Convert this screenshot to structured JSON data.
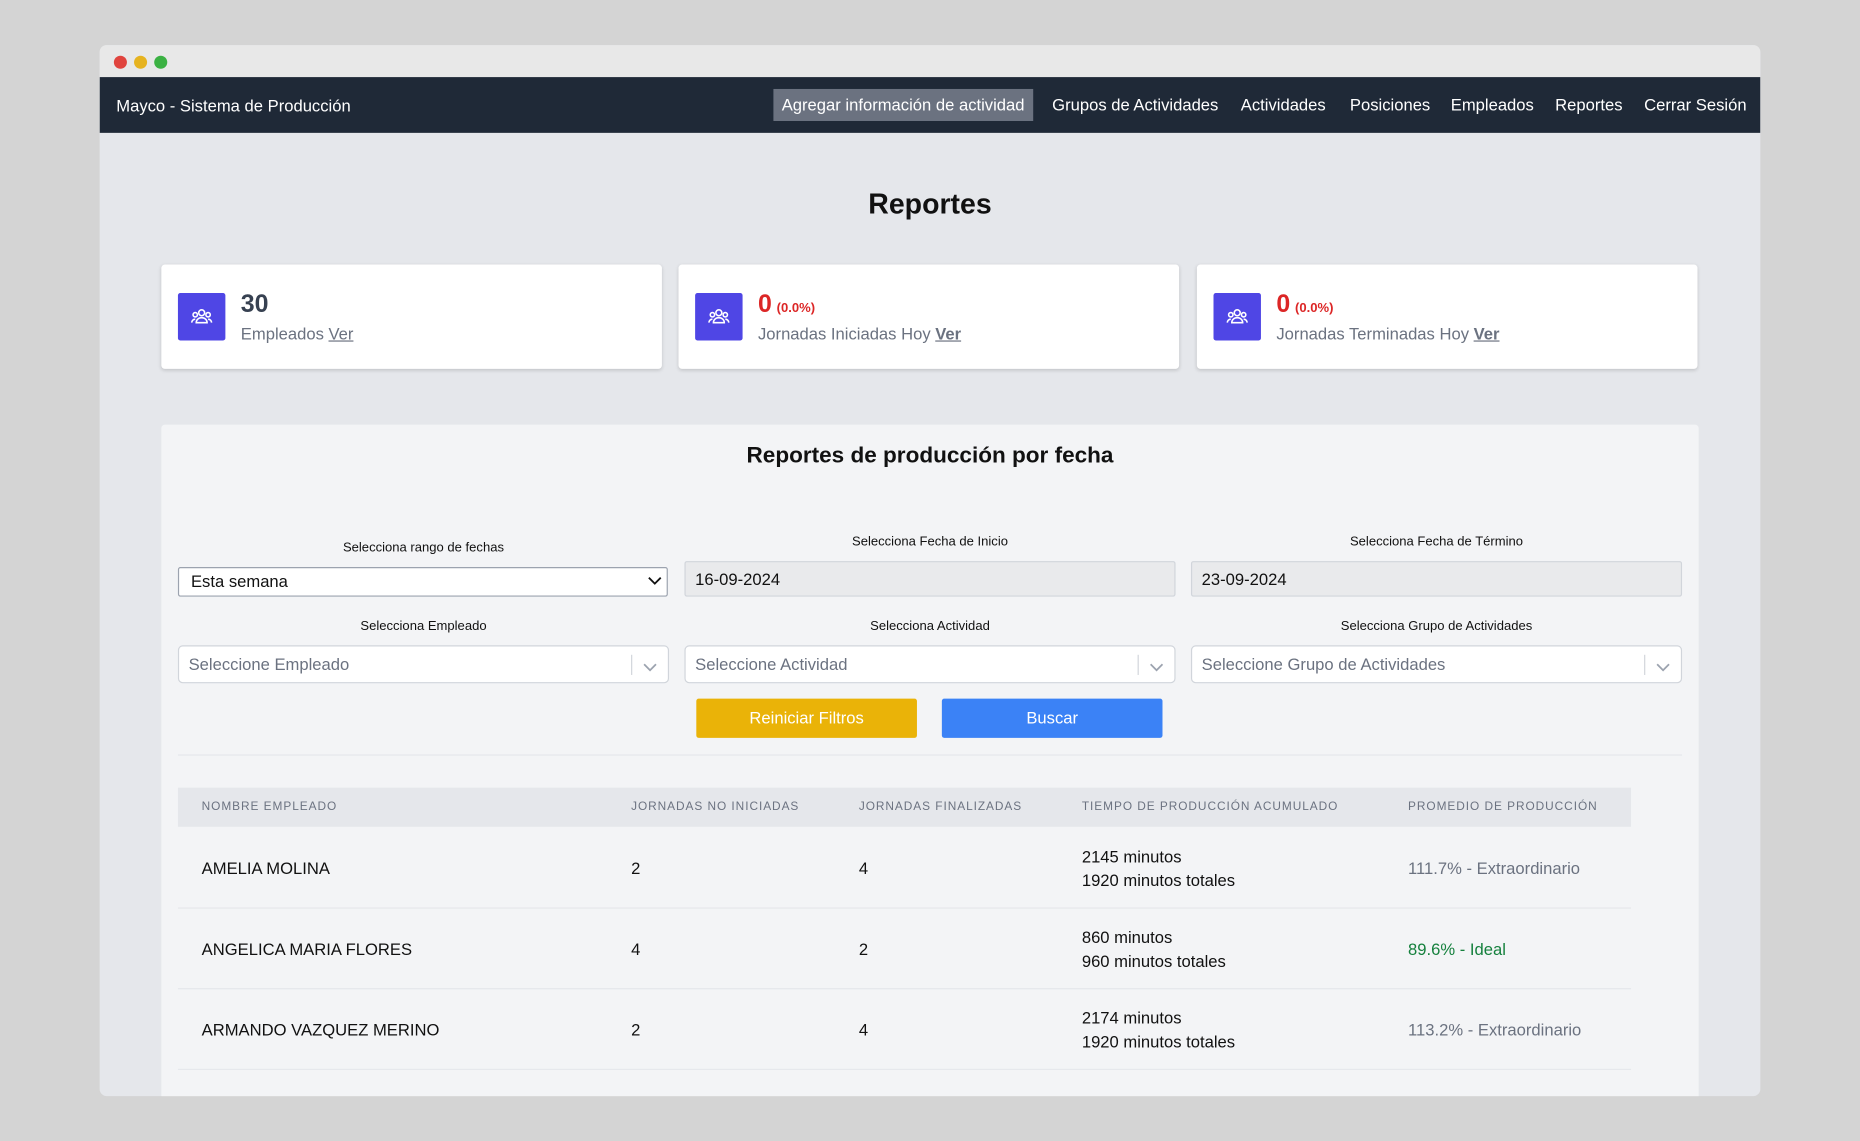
{
  "nav": {
    "brand": "Mayco - Sistema de Producción",
    "links": [
      "Agregar información de actividad",
      "Grupos de Actividades",
      "Actividades",
      "Posiciones",
      "Empleados",
      "Reportes",
      "Cerrar Sesión"
    ]
  },
  "page_title": "Reportes",
  "cards": [
    {
      "value": "30",
      "label": "Empleados",
      "link": "Ver"
    },
    {
      "value": "0",
      "percent": "(0.0%)",
      "label": "Jornadas Iniciadas Hoy",
      "link": "Ver"
    },
    {
      "value": "0",
      "percent": "(0.0%)",
      "label": "Jornadas Terminadas Hoy",
      "link": "Ver"
    }
  ],
  "section": {
    "title": "Reportes de producción por fecha",
    "filters": [
      {
        "label": "Selecciona rango de fechas",
        "value": "Esta semana"
      },
      {
        "label": "Selecciona Fecha de Inicio",
        "value": "16-09-2024"
      },
      {
        "label": "Selecciona Fecha de Término",
        "value": "23-09-2024"
      },
      {
        "label": "Selecciona Empleado",
        "placeholder": "Seleccione Empleado"
      },
      {
        "label": "Selecciona Actividad",
        "placeholder": "Seleccione Actividad"
      },
      {
        "label": "Selecciona Grupo de Actividades",
        "placeholder": "Seleccione Grupo de Actividades"
      }
    ],
    "buttons": [
      "Reiniciar Filtros",
      "Buscar"
    ],
    "table": {
      "headers": [
        "Nombre empleado",
        "Jornadas no iniciadas",
        "Jornadas finalizadas",
        "Tiempo de producción acumulado",
        "Promedio de producción"
      ],
      "rows": [
        {
          "name": "AMELIA MOLINA",
          "not_started": "2",
          "finished": "4",
          "time": "2145 minutos",
          "total": "1920 minutos totales",
          "average": "111.7% - Extraordinario"
        },
        {
          "name": "ANGELICA MARIA FLORES",
          "not_started": "4",
          "finished": "2",
          "time": "860 minutos",
          "total": "960 minutos totales",
          "average": "89.6% - Ideal"
        },
        {
          "name": "ARMANDO VAZQUEZ MERINO",
          "not_started": "2",
          "finished": "4",
          "time": "2174 minutos",
          "total": "1920 minutos totales",
          "average": "113.2% - Extraordinario"
        }
      ]
    }
  }
}
